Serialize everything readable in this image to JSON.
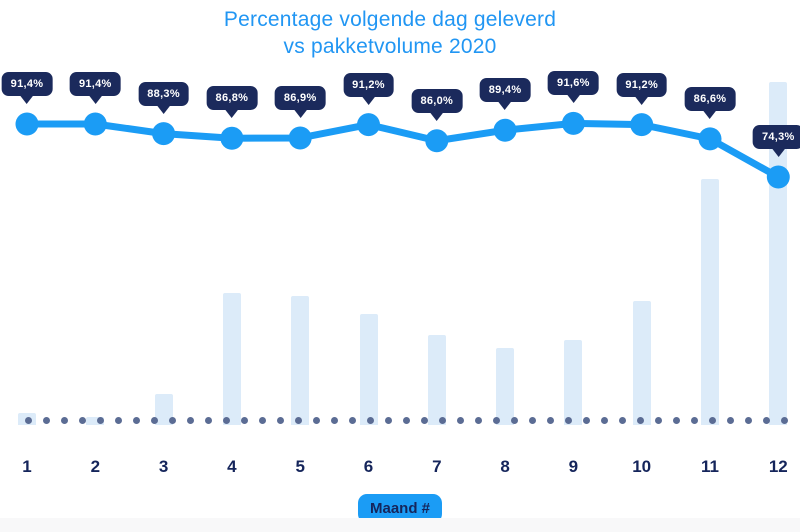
{
  "title": {
    "line1": "Percentage volgende dag geleverd",
    "line2": "vs pakketvolume 2020"
  },
  "x_axis": {
    "label_badge": "Maand #",
    "tick_labels": [
      "1",
      "2",
      "3",
      "4",
      "5",
      "6",
      "7",
      "8",
      "9",
      "10",
      "11",
      "12"
    ]
  },
  "colors": {
    "title_blue": "#2196f3",
    "line_blue": "#1b9cf5",
    "tooltip_navy": "#1b2a5c",
    "tooltip_text": "#ffffff",
    "bar_light_blue": "#dcebf9",
    "dot_grey_blue": "#5b6c94",
    "axis_text_navy": "#15255b",
    "badge_blue": "#1b9cf5",
    "background": "#ffffff"
  },
  "chart_data": {
    "type": "combo",
    "title": "Percentage volgende dag geleverd vs pakketvolume 2020",
    "categories": [
      1,
      2,
      3,
      4,
      5,
      6,
      7,
      8,
      9,
      10,
      11,
      12
    ],
    "xlabel": "Maand #",
    "legend": "none",
    "grid": "off",
    "series": [
      {
        "name": "Percentage volgende dag geleverd",
        "type": "line",
        "unit": "%",
        "values": [
          91.4,
          91.4,
          88.3,
          86.8,
          86.9,
          91.2,
          86.0,
          89.4,
          91.6,
          91.2,
          86.6,
          74.3
        ],
        "labels": [
          "91,4%",
          "91,4%",
          "88,3%",
          "86,8%",
          "86,9%",
          "91,2%",
          "86,0%",
          "89,4%",
          "91,6%",
          "91,2%",
          "86,6%",
          "74,3%"
        ]
      },
      {
        "name": "Pakketvolume",
        "type": "bar",
        "unit": "relative index, est. from bar heights (Dec 2020 = 100)",
        "values": [
          3.5,
          2.3,
          9,
          38.5,
          37.6,
          32.4,
          26.2,
          22.4,
          24.7,
          36.2,
          71.7,
          100
        ]
      }
    ],
    "baseline": {
      "style": "dotted",
      "value": 0
    }
  }
}
